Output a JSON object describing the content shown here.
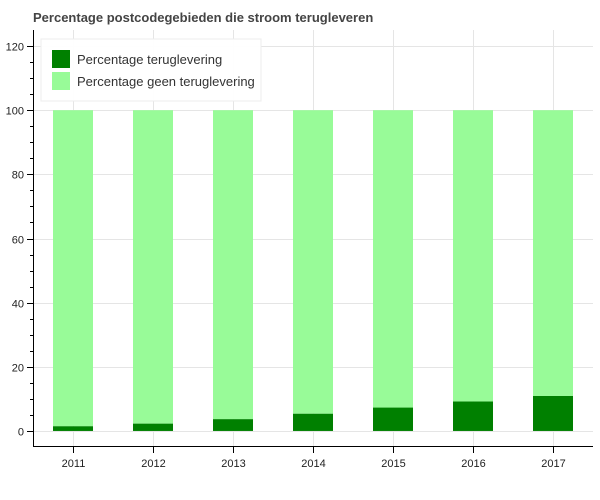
{
  "chart_data": {
    "type": "bar",
    "stacked": true,
    "title": "Percentage postcodegebieden die stroom terugleveren",
    "xlabel": "",
    "ylabel": "",
    "categories": [
      "2011",
      "2012",
      "2013",
      "2014",
      "2015",
      "2016",
      "2017"
    ],
    "series": [
      {
        "name": "Percentage teruglevering",
        "color": "#008000",
        "values": [
          1.5,
          2.3,
          3.7,
          5.4,
          7.3,
          9.2,
          10.9
        ]
      },
      {
        "name": "Percentage geen teruglevering",
        "color": "#98fb98",
        "values": [
          98.5,
          97.7,
          96.3,
          94.6,
          92.7,
          90.8,
          89.1
        ]
      }
    ],
    "ylim": [
      -5,
      125
    ],
    "yticks": [
      0,
      20,
      40,
      60,
      80,
      100,
      120
    ],
    "grid": true,
    "legend_position": "top-left"
  }
}
